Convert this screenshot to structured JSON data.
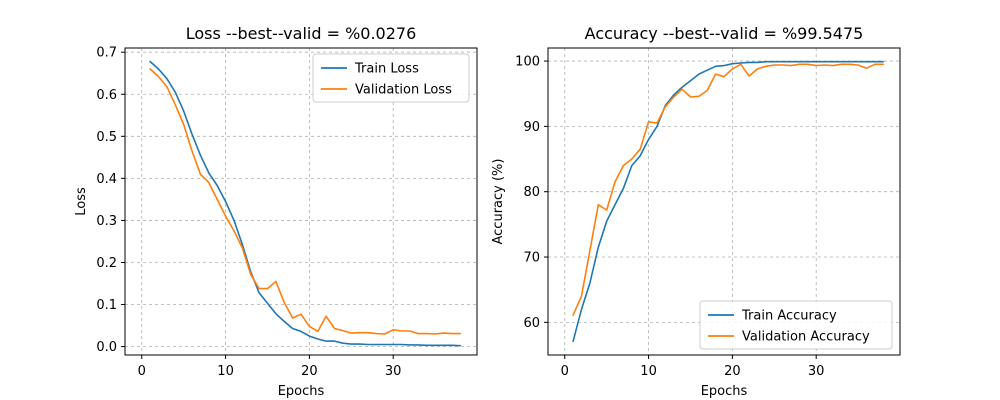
{
  "chart_data": [
    {
      "type": "line",
      "title": "Loss --best--valid = %0.0276",
      "xlabel": "Epochs",
      "ylabel": "Loss",
      "xlim": [
        -2,
        40
      ],
      "ylim": [
        -0.02,
        0.71
      ],
      "xticks": [
        0,
        10,
        20,
        30
      ],
      "yticks": [
        0.0,
        0.1,
        0.2,
        0.3,
        0.4,
        0.5,
        0.6,
        0.7
      ],
      "ytick_labels": [
        "0.0",
        "0.1",
        "0.2",
        "0.3",
        "0.4",
        "0.5",
        "0.6",
        "0.7"
      ],
      "grid": true,
      "legend": "top-right",
      "x": [
        1,
        2,
        3,
        4,
        5,
        6,
        7,
        8,
        9,
        10,
        11,
        12,
        13,
        14,
        15,
        16,
        17,
        18,
        19,
        20,
        21,
        22,
        23,
        24,
        25,
        26,
        27,
        28,
        29,
        30,
        31,
        32,
        33,
        34,
        35,
        36,
        37,
        38
      ],
      "series": [
        {
          "name": "Train Loss",
          "color": "#1f77b4",
          "values": [
            0.678,
            0.66,
            0.637,
            0.605,
            0.56,
            0.505,
            0.455,
            0.413,
            0.383,
            0.345,
            0.3,
            0.243,
            0.178,
            0.128,
            0.103,
            0.078,
            0.06,
            0.043,
            0.036,
            0.025,
            0.018,
            0.013,
            0.013,
            0.008,
            0.006,
            0.006,
            0.005,
            0.005,
            0.005,
            0.005,
            0.005,
            0.004,
            0.004,
            0.003,
            0.003,
            0.003,
            0.003,
            0.002
          ]
        },
        {
          "name": "Validation Loss",
          "color": "#ff7f0e",
          "values": [
            0.66,
            0.642,
            0.618,
            0.575,
            0.528,
            0.465,
            0.41,
            0.39,
            0.35,
            0.31,
            0.275,
            0.235,
            0.172,
            0.138,
            0.138,
            0.155,
            0.105,
            0.068,
            0.077,
            0.048,
            0.036,
            0.072,
            0.043,
            0.038,
            0.032,
            0.033,
            0.033,
            0.031,
            0.03,
            0.04,
            0.037,
            0.037,
            0.031,
            0.031,
            0.03,
            0.032,
            0.031,
            0.031
          ]
        }
      ]
    },
    {
      "type": "line",
      "title": "Accuracy --best--valid = %99.5475",
      "xlabel": "Epochs",
      "ylabel": "Accuracy (%)",
      "xlim": [
        -2,
        40
      ],
      "ylim": [
        55,
        102
      ],
      "xticks": [
        0,
        10,
        20,
        30
      ],
      "yticks": [
        60,
        70,
        80,
        90,
        100
      ],
      "ytick_labels": [
        "60",
        "70",
        "80",
        "90",
        "100"
      ],
      "grid": true,
      "legend": "bottom-right",
      "x": [
        1,
        2,
        3,
        4,
        5,
        6,
        7,
        8,
        9,
        10,
        11,
        12,
        13,
        14,
        15,
        16,
        17,
        18,
        19,
        20,
        21,
        22,
        23,
        24,
        25,
        26,
        27,
        28,
        29,
        30,
        31,
        32,
        33,
        34,
        35,
        36,
        37,
        38
      ],
      "series": [
        {
          "name": "Train Accuracy",
          "color": "#1f77b4",
          "values": [
            57.1,
            62.0,
            66.0,
            71.5,
            75.5,
            78.0,
            80.5,
            84.0,
            85.5,
            88.0,
            90.0,
            93.2,
            94.8,
            96.0,
            97.0,
            98.0,
            98.6,
            99.2,
            99.3,
            99.6,
            99.7,
            99.8,
            99.8,
            99.9,
            99.9,
            99.9,
            99.9,
            99.9,
            99.9,
            99.9,
            99.9,
            99.9,
            99.9,
            99.9,
            99.9,
            99.9,
            99.9,
            99.9
          ]
        },
        {
          "name": "Validation Accuracy",
          "color": "#ff7f0e",
          "values": [
            61.1,
            64.0,
            71.0,
            78.0,
            77.2,
            81.5,
            84.0,
            85.0,
            86.5,
            90.7,
            90.5,
            93.0,
            94.5,
            95.7,
            94.5,
            94.6,
            95.5,
            98.0,
            97.6,
            98.8,
            99.5,
            97.7,
            98.8,
            99.2,
            99.4,
            99.4,
            99.3,
            99.5,
            99.5,
            99.3,
            99.4,
            99.3,
            99.5,
            99.5,
            99.4,
            98.9,
            99.5,
            99.5
          ]
        }
      ]
    }
  ]
}
